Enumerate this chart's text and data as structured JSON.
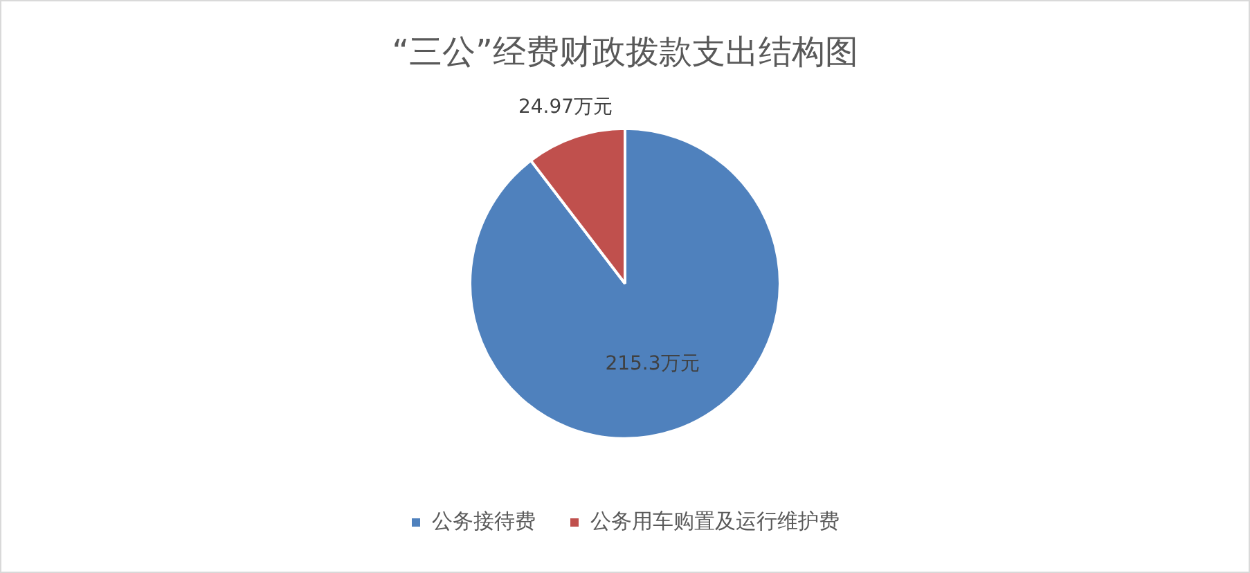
{
  "chart_data": {
    "type": "pie",
    "title": "“三公”经费财政拨款支出结构图",
    "categories": [
      "公务接待费",
      "公务用车购置及运行维护费"
    ],
    "values": [
      215.3,
      24.97
    ],
    "colors": [
      "#4f81bd",
      "#c0504d"
    ],
    "value_labels": [
      "215.3万元",
      "24.97万元"
    ],
    "legend": "bottom"
  }
}
